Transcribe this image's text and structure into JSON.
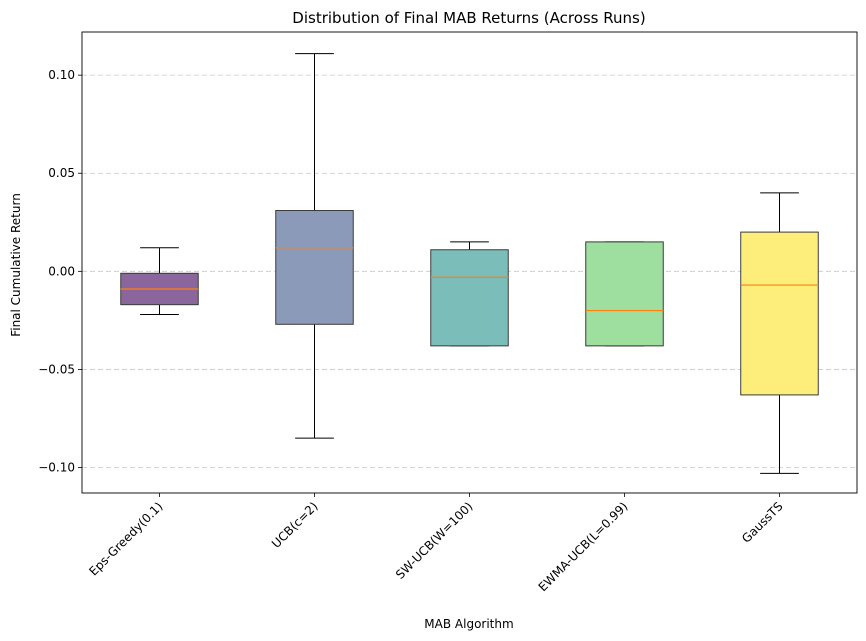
{
  "chart_data": {
    "type": "box",
    "title": "Distribution of Final MAB Returns (Across Runs)",
    "xlabel": "MAB Algorithm",
    "ylabel": "Final Cumulative Return",
    "ylim": [
      -0.113,
      0.122
    ],
    "yticks": [
      -0.1,
      -0.05,
      0.0,
      0.05,
      0.1
    ],
    "ytick_labels": [
      "−0.10",
      "−0.05",
      "0.00",
      "0.05",
      "0.10"
    ],
    "grid": "y-dashed",
    "categories": [
      "Eps-Greedy(0.1)",
      "UCB(c=2)",
      "SW-UCB(W=100)",
      "EWMA-UCB(L=0.99)",
      "GaussTS"
    ],
    "boxes": [
      {
        "whislo": -0.022,
        "q1": -0.017,
        "med": -0.009,
        "q3": -0.001,
        "whishi": 0.012,
        "color": "#8a669c"
      },
      {
        "whislo": -0.085,
        "q1": -0.027,
        "med": 0.012,
        "q3": 0.031,
        "whishi": 0.111,
        "color": "#8a9ab8"
      },
      {
        "whislo": -0.038,
        "q1": -0.038,
        "med": -0.003,
        "q3": 0.011,
        "whishi": 0.015,
        "color": "#7abdb9"
      },
      {
        "whislo": -0.038,
        "q1": -0.038,
        "med": -0.02,
        "q3": 0.015,
        "whishi": 0.015,
        "color": "#9ede9e"
      },
      {
        "whislo": -0.103,
        "q1": -0.063,
        "med": -0.007,
        "q3": 0.02,
        "whishi": 0.04,
        "color": "#fdee7c"
      }
    ],
    "median_color": "#ff7f0e"
  }
}
